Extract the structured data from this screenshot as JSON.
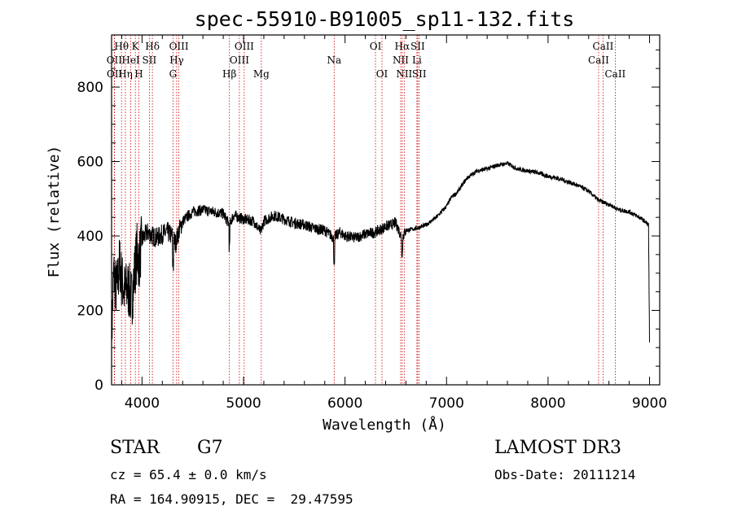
{
  "chart_data": {
    "type": "line",
    "title": "spec-55910-B91005_sp11-132.fits",
    "xlabel": "Wavelength (Å)",
    "ylabel": "Flux (relative)",
    "xlim": [
      3700,
      9100
    ],
    "ylim": [
      0,
      940
    ],
    "xticks": [
      4000,
      5000,
      6000,
      7000,
      8000,
      9000
    ],
    "yticks": [
      0,
      200,
      400,
      600,
      800
    ],
    "grid": false,
    "legend": "none",
    "line_color": "#000000",
    "marker_color": "#cc0000",
    "spectrum_anchors": {
      "x": [
        3700,
        3720,
        3750,
        3780,
        3800,
        3830,
        3860,
        3900,
        3930,
        3950,
        3970,
        4000,
        4050,
        4100,
        4150,
        4200,
        4250,
        4300,
        4330,
        4360,
        4400,
        4500,
        4600,
        4700,
        4800,
        4860,
        4900,
        5000,
        5100,
        5170,
        5200,
        5300,
        5400,
        5500,
        5600,
        5700,
        5800,
        5890,
        5950,
        6000,
        6100,
        6200,
        6300,
        6400,
        6500,
        6560,
        6600,
        6700,
        6800,
        6900,
        7000,
        7050,
        7100,
        7200,
        7300,
        7400,
        7500,
        7600,
        7700,
        7800,
        7900,
        8000,
        8100,
        8200,
        8300,
        8400,
        8500,
        8600,
        8700,
        8800,
        8900,
        8950,
        8990,
        9000
      ],
      "y": [
        120,
        300,
        250,
        330,
        280,
        250,
        260,
        230,
        310,
        360,
        330,
        390,
        410,
        400,
        395,
        405,
        410,
        400,
        380,
        410,
        440,
        465,
        470,
        465,
        460,
        430,
        455,
        445,
        440,
        410,
        440,
        455,
        445,
        435,
        430,
        420,
        415,
        395,
        410,
        400,
        395,
        405,
        410,
        425,
        435,
        395,
        415,
        420,
        430,
        450,
        480,
        505,
        515,
        555,
        575,
        580,
        590,
        595,
        580,
        575,
        570,
        560,
        555,
        545,
        535,
        520,
        495,
        485,
        470,
        465,
        450,
        440,
        430,
        110
      ]
    },
    "lines": [
      {
        "name": "Hθ",
        "x": 3798,
        "row": 1
      },
      {
        "name": "OII",
        "x": 3727,
        "row": 2
      },
      {
        "name": "OII",
        "x": 3729,
        "row": 3
      },
      {
        "name": "Hη",
        "x": 3836,
        "row": 3
      },
      {
        "name": "HeI",
        "x": 3889,
        "row": 2
      },
      {
        "name": "K",
        "x": 3934,
        "row": 1
      },
      {
        "name": "H",
        "x": 3969,
        "row": 3
      },
      {
        "name": "SII",
        "x": 4072,
        "row": 2
      },
      {
        "name": "Hδ",
        "x": 4102,
        "row": 1
      },
      {
        "name": "Hγ",
        "x": 4341,
        "row": 2
      },
      {
        "name": "G",
        "x": 4305,
        "row": 3
      },
      {
        "name": "OIII",
        "x": 4363,
        "row": 1
      },
      {
        "name": "Hβ",
        "x": 4861,
        "row": 3
      },
      {
        "name": "OIII",
        "x": 4959,
        "row": 2
      },
      {
        "name": "OIII",
        "x": 5007,
        "row": 1
      },
      {
        "name": "Mg",
        "x": 5175,
        "row": 3
      },
      {
        "name": "Na",
        "x": 5893,
        "row": 2
      },
      {
        "name": "OI",
        "x": 6300,
        "row": 1
      },
      {
        "name": "OI",
        "x": 6364,
        "row": 3
      },
      {
        "name": "NII",
        "x": 6548,
        "row": 2
      },
      {
        "name": "Hα",
        "x": 6563,
        "row": 1
      },
      {
        "name": "NII",
        "x": 6583,
        "row": 3
      },
      {
        "name": "SII",
        "x": 6716,
        "row": 1
      },
      {
        "name": "Li",
        "x": 6708,
        "row": 2
      },
      {
        "name": "SII",
        "x": 6731,
        "row": 3
      },
      {
        "name": "CaII",
        "x": 8498,
        "row": 2
      },
      {
        "name": "CaII",
        "x": 8542,
        "row": 1
      },
      {
        "name": "CaII",
        "x": 8662,
        "row": 3
      }
    ]
  },
  "info": {
    "class": "STAR",
    "subclass": "G7",
    "survey": "LAMOST DR3",
    "cz": "cz = 65.4 ± 0.0 km/s",
    "obs_date": "Obs-Date: 20111214",
    "radec": "RA = 164.90915, DEC =  29.47595"
  }
}
